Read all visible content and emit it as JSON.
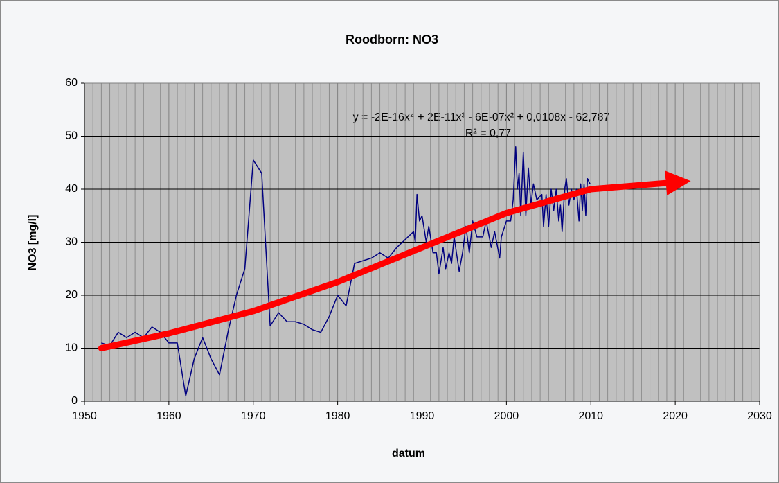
{
  "chart_data": {
    "type": "line",
    "title": "Roodborn: NO3",
    "xlabel": "datum",
    "ylabel": "NO3 [mg/l]",
    "annotation": {
      "equation": "y = -2E-16x⁴ + 2E-11x³ - 6E-07x² + 0,0108x - 62,787",
      "r2": "R² = 0,77"
    },
    "xlim": [
      1950,
      2030
    ],
    "xticks": [
      1950,
      1960,
      1970,
      1980,
      1990,
      2000,
      2010,
      2020,
      2030
    ],
    "xminorticks": [
      1951,
      1952,
      1953,
      1954,
      1955,
      1956,
      1957,
      1958,
      1959,
      1961,
      1962,
      1963,
      1964,
      1965,
      1966,
      1967,
      1968,
      1969,
      1971,
      1972,
      1973,
      1974,
      1975,
      1976,
      1977,
      1978,
      1979,
      1981,
      1982,
      1983,
      1984,
      1985,
      1986,
      1987,
      1988,
      1989,
      1991,
      1992,
      1993,
      1994,
      1995,
      1996,
      1997,
      1998,
      1999,
      2001,
      2002,
      2003,
      2004,
      2005,
      2006,
      2007,
      2008,
      2009,
      2011,
      2012,
      2013,
      2014,
      2015,
      2016,
      2017,
      2018,
      2019,
      2021,
      2022,
      2023,
      2024,
      2025,
      2026,
      2027,
      2028,
      2029
    ],
    "ylim": [
      0,
      60
    ],
    "yticks": [
      0,
      10,
      20,
      30,
      40,
      50,
      60
    ],
    "grid": true,
    "series": [
      {
        "color": "#000080",
        "x": [
          1952,
          1953,
          1954,
          1955,
          1956,
          1957,
          1958,
          1959,
          1960,
          1961,
          1962,
          1963,
          1964,
          1965,
          1966,
          1967,
          1968,
          1969,
          1970,
          1971,
          1972,
          1973,
          1974,
          1975,
          1976,
          1977,
          1978,
          1979,
          1980,
          1981,
          1982,
          1983,
          1984,
          1985,
          1986,
          1987,
          1988,
          1989,
          1989.2,
          1989.4,
          1989.7,
          1990,
          1990.5,
          1990.8,
          1991.3,
          1991.7,
          1992,
          1992.5,
          1992.8,
          1993.2,
          1993.5,
          1993.8,
          1994.4,
          1994.8,
          1995.2,
          1995.6,
          1996,
          1996.5,
          1997.2,
          1997.6,
          1998.2,
          1998.6,
          1999.2,
          1999.4,
          2000,
          2000.5,
          2000.8,
          2001.1,
          2001.3,
          2001.5,
          2001.7,
          2002,
          2002.3,
          2002.6,
          2002.9,
          2003.2,
          2003.6,
          2004.2,
          2004.4,
          2004.7,
          2005,
          2005.3,
          2005.6,
          2005.9,
          2006.2,
          2006.4,
          2006.6,
          2006.9,
          2007.1,
          2007.4,
          2007.7,
          2008,
          2008.3,
          2008.6,
          2008.8,
          2009,
          2009.2,
          2009.4,
          2009.6,
          2009.9
        ],
        "values": [
          11,
          10.5,
          13,
          12,
          13,
          12,
          14,
          13,
          11,
          11,
          1,
          8,
          12,
          8,
          5,
          13,
          20,
          25,
          45.5,
          43,
          14.2,
          16.7,
          15,
          15,
          14.5,
          13.5,
          13,
          16,
          20,
          18,
          26,
          26.5,
          27,
          28,
          27,
          29,
          30.5,
          32,
          30,
          39,
          34,
          35,
          30,
          33,
          28,
          28,
          24,
          29,
          25,
          28,
          26,
          31,
          24.5,
          28,
          33,
          28,
          34,
          31,
          31,
          34,
          29,
          32,
          27,
          31,
          34,
          34,
          38,
          48,
          40,
          43,
          35,
          47,
          35,
          44,
          37,
          41,
          38,
          39,
          33,
          39,
          33,
          40,
          36,
          40,
          34,
          37,
          32,
          40,
          42,
          37,
          40,
          38,
          40,
          34,
          41,
          36,
          41,
          35,
          42,
          41
        ]
      }
    ],
    "trend": {
      "color": "#ff0000",
      "x": [
        1952,
        1960,
        1970,
        1980,
        1990,
        2000,
        2010,
        2020
      ],
      "values": [
        10,
        12.8,
        17,
        22.5,
        29,
        35.5,
        40,
        41.3
      ]
    }
  }
}
